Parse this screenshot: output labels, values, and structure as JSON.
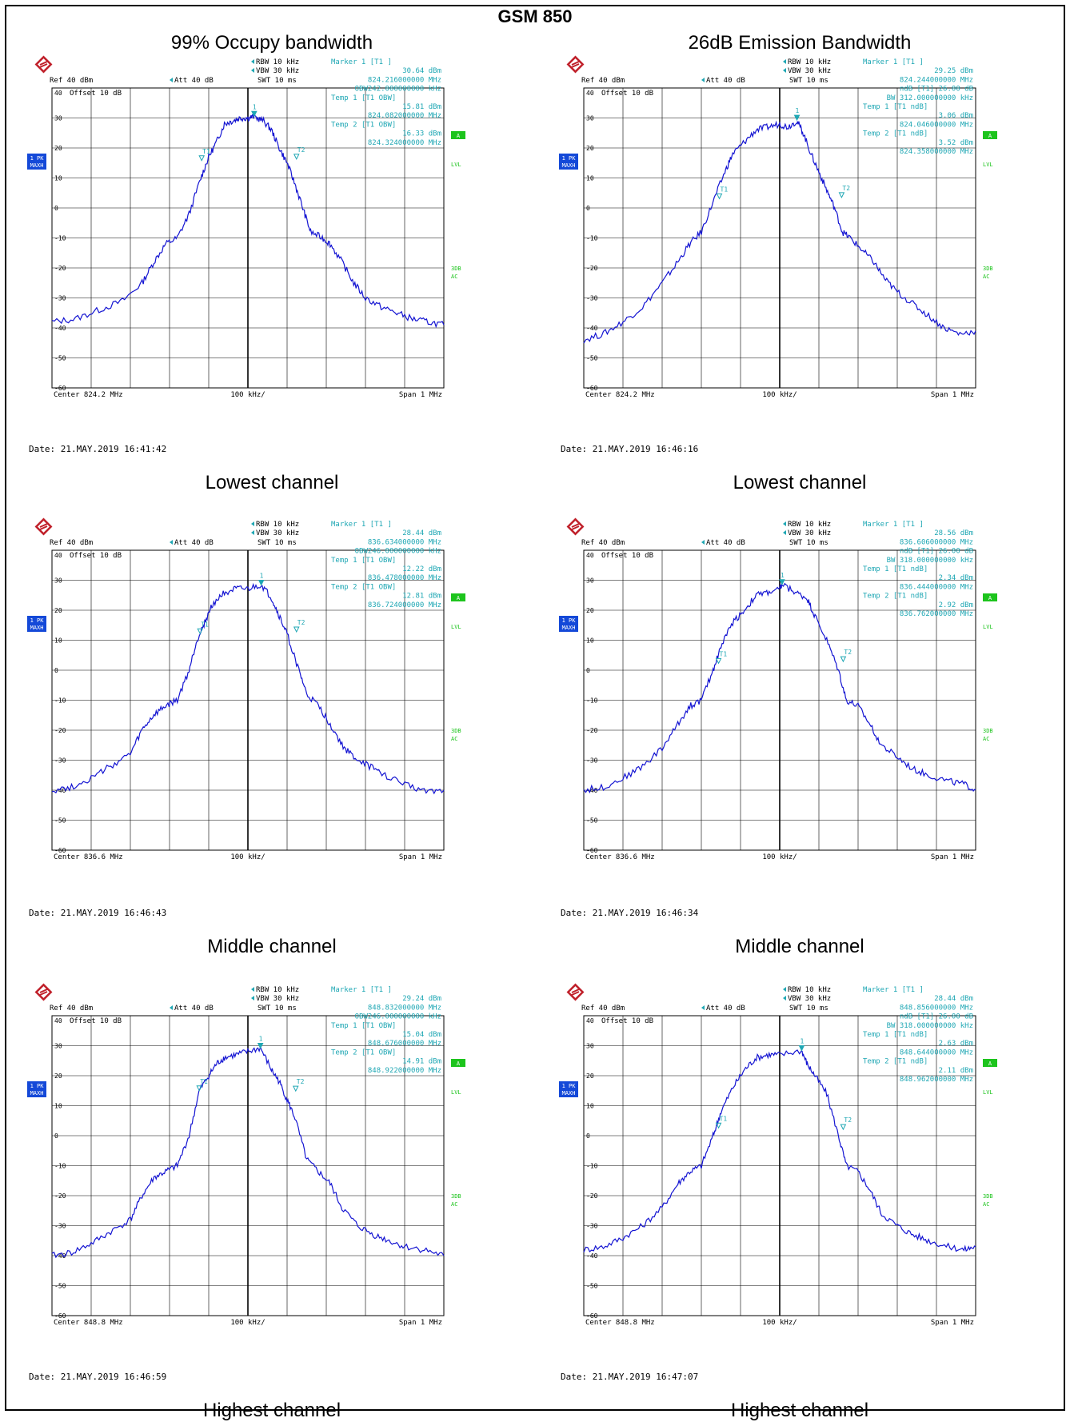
{
  "page": {
    "title": "GSM 850",
    "column_headers": [
      "99% Occupy bandwidth",
      "26dB Emission Bandwidth"
    ]
  },
  "colors": {
    "trace": "#1414d2",
    "readout": "#1fa7b4",
    "side_badge": "#1449d8",
    "status_badge": "#1dc41d",
    "grid": "#000000"
  },
  "chart_data": [
    {
      "type": "line",
      "instrument": {
        "rbw": "RBW 10 kHz",
        "vbw": "VBW 30 kHz",
        "swt": "SWT 10 ms",
        "ref": "Ref  40 dBm",
        "att": "Att  40 dB",
        "offset": "Offset  10 dB",
        "center": "Center 824.2 MHz",
        "div": "100 kHz/",
        "span": "Span 1 MHz",
        "trace_badge": [
          "1 PK",
          "MAXH"
        ],
        "status_badges": [
          "A",
          "LVL"
        ],
        "right_labels": [
          "3DB",
          "AC"
        ]
      },
      "marker_readout": [
        "Marker 1 [T1 ]",
        "30.64 dBm",
        "824.216000000 MHz",
        "OBW242.000000000 kHz",
        "Temp 1 [T1 OBW]",
        "15.81 dBm",
        "824.082000000 MHz",
        "Temp 2 [T1 OBW]",
        "16.33 dBm",
        "824.324000000 MHz"
      ],
      "date": "Date: 21.MAY.2019  16:41:42",
      "caption": "Lowest channel",
      "ylim": [
        -60,
        40
      ],
      "xlim": [
        -500,
        500
      ],
      "y_ticks": [
        40,
        30,
        20,
        10,
        0,
        -10,
        -20,
        -30,
        -40,
        -50,
        -60
      ],
      "trace_points": [
        [
          -500,
          -38
        ],
        [
          -440,
          -37
        ],
        [
          -380,
          -34
        ],
        [
          -320,
          -31
        ],
        [
          -270,
          -25
        ],
        [
          -240,
          -18
        ],
        [
          -210,
          -12
        ],
        [
          -180,
          -10
        ],
        [
          -150,
          -2
        ],
        [
          -120,
          10
        ],
        [
          -100,
          17
        ],
        [
          -80,
          22
        ],
        [
          -60,
          28
        ],
        [
          -40,
          29
        ],
        [
          -20,
          30
        ],
        [
          0,
          30
        ],
        [
          16,
          30.5
        ],
        [
          40,
          29
        ],
        [
          60,
          26
        ],
        [
          80,
          20
        ],
        [
          100,
          15
        ],
        [
          120,
          8
        ],
        [
          140,
          0
        ],
        [
          160,
          -8
        ],
        [
          190,
          -10
        ],
        [
          210,
          -12
        ],
        [
          240,
          -18
        ],
        [
          270,
          -25
        ],
        [
          300,
          -30
        ],
        [
          340,
          -33
        ],
        [
          380,
          -35
        ],
        [
          420,
          -37
        ],
        [
          460,
          -38
        ],
        [
          500,
          -39
        ]
      ],
      "markers": [
        {
          "label": "1",
          "x": 16,
          "y": 30.6
        },
        {
          "label": "T1",
          "x": -118,
          "y": 15.8
        },
        {
          "label": "T2",
          "x": 124,
          "y": 16.3
        }
      ]
    },
    {
      "type": "line",
      "instrument": {
        "rbw": "RBW 10 kHz",
        "vbw": "VBW 30 kHz",
        "swt": "SWT 10 ms",
        "ref": "Ref  40 dBm",
        "att": "Att  40 dB",
        "offset": "Offset  10 dB",
        "center": "Center 824.2 MHz",
        "div": "100 kHz/",
        "span": "Span 1 MHz",
        "trace_badge": [
          "1 PK",
          "MAXH"
        ],
        "status_badges": [
          "A",
          "LVL"
        ],
        "right_labels": [
          "3DB",
          "AC"
        ]
      },
      "marker_readout": [
        "Marker 1 [T1 ]",
        "29.25 dBm",
        "824.244000000 MHz",
        "ndB [T1]  26.00 dB",
        "BW 312.000000000 kHz",
        "Temp 1 [T1 ndB]",
        "3.06 dBm",
        "824.046000000 MHz",
        "Temp 2 [T1 ndB]",
        "3.52 dBm",
        "824.358000000 MHz"
      ],
      "date": "Date: 21.MAY.2019  16:46:16",
      "caption": "Lowest channel",
      "ylim": [
        -60,
        40
      ],
      "xlim": [
        -500,
        500
      ],
      "y_ticks": [
        40,
        30,
        20,
        10,
        0,
        -10,
        -20,
        -30,
        -40,
        -50,
        -60
      ],
      "trace_points": [
        [
          -500,
          -44
        ],
        [
          -450,
          -42
        ],
        [
          -400,
          -38
        ],
        [
          -350,
          -33
        ],
        [
          -300,
          -25
        ],
        [
          -260,
          -18
        ],
        [
          -230,
          -12
        ],
        [
          -200,
          -8
        ],
        [
          -170,
          2
        ],
        [
          -140,
          12
        ],
        [
          -120,
          18
        ],
        [
          -90,
          22
        ],
        [
          -60,
          26
        ],
        [
          -30,
          27
        ],
        [
          0,
          28
        ],
        [
          20,
          27
        ],
        [
          44,
          29
        ],
        [
          60,
          25
        ],
        [
          80,
          18
        ],
        [
          100,
          12
        ],
        [
          120,
          6
        ],
        [
          140,
          0
        ],
        [
          160,
          -8
        ],
        [
          180,
          -10
        ],
        [
          210,
          -14
        ],
        [
          240,
          -18
        ],
        [
          270,
          -24
        ],
        [
          300,
          -28
        ],
        [
          340,
          -32
        ],
        [
          380,
          -36
        ],
        [
          420,
          -40
        ],
        [
          460,
          -42
        ],
        [
          500,
          -41
        ]
      ],
      "markers": [
        {
          "label": "1",
          "x": 44,
          "y": 29.3
        },
        {
          "label": "T1",
          "x": -154,
          "y": 3.1
        },
        {
          "label": "T2",
          "x": 158,
          "y": 3.5
        }
      ]
    },
    {
      "type": "line",
      "instrument": {
        "rbw": "RBW 10 kHz",
        "vbw": "VBW 30 kHz",
        "swt": "SWT 10 ms",
        "ref": "Ref  40 dBm",
        "att": "Att  40 dB",
        "offset": "Offset  10 dB",
        "center": "Center 836.6 MHz",
        "div": "100 kHz/",
        "span": "Span 1 MHz",
        "trace_badge": [
          "1 PK",
          "MAXH"
        ],
        "status_badges": [
          "A",
          "LVL"
        ],
        "right_labels": [
          "3DB",
          "AC"
        ]
      },
      "marker_readout": [
        "Marker 1 [T1 ]",
        "28.44 dBm",
        "836.634000000 MHz",
        "OBW246.000000000 kHz",
        "Temp 1 [T1 OBW]",
        "12.22 dBm",
        "836.478000000 MHz",
        "Temp 2 [T1 OBW]",
        "12.81 dBm",
        "836.724000000 MHz"
      ],
      "date": "Date: 21.MAY.2019  16:46:43",
      "caption": "Middle channel",
      "ylim": [
        -60,
        40
      ],
      "xlim": [
        -500,
        500
      ],
      "y_ticks": [
        40,
        30,
        20,
        10,
        0,
        -10,
        -20,
        -30,
        -40,
        -50,
        -60
      ],
      "trace_points": [
        [
          -500,
          -40
        ],
        [
          -450,
          -39
        ],
        [
          -400,
          -36
        ],
        [
          -350,
          -32
        ],
        [
          -300,
          -28
        ],
        [
          -270,
          -20
        ],
        [
          -240,
          -15
        ],
        [
          -210,
          -12
        ],
        [
          -180,
          -10
        ],
        [
          -150,
          0
        ],
        [
          -130,
          10
        ],
        [
          -110,
          16
        ],
        [
          -90,
          22
        ],
        [
          -60,
          26
        ],
        [
          -30,
          27
        ],
        [
          0,
          27
        ],
        [
          34,
          28.4
        ],
        [
          60,
          24
        ],
        [
          80,
          18
        ],
        [
          100,
          12
        ],
        [
          130,
          0
        ],
        [
          150,
          -8
        ],
        [
          180,
          -12
        ],
        [
          210,
          -18
        ],
        [
          240,
          -25
        ],
        [
          270,
          -29
        ],
        [
          310,
          -32
        ],
        [
          350,
          -35
        ],
        [
          400,
          -38
        ],
        [
          450,
          -40
        ],
        [
          500,
          -40
        ]
      ],
      "markers": [
        {
          "label": "1",
          "x": 34,
          "y": 28.4
        },
        {
          "label": "T1",
          "x": -122,
          "y": 12.2
        },
        {
          "label": "T2",
          "x": 124,
          "y": 12.8
        }
      ]
    },
    {
      "type": "line",
      "instrument": {
        "rbw": "RBW 10 kHz",
        "vbw": "VBW 30 kHz",
        "swt": "SWT 10 ms",
        "ref": "Ref  40 dBm",
        "att": "Att  40 dB",
        "offset": "Offset  10 dB",
        "center": "Center 836.6 MHz",
        "div": "100 kHz/",
        "span": "Span 1 MHz",
        "trace_badge": [
          "1 PK",
          "MAXH"
        ],
        "status_badges": [
          "A",
          "LVL"
        ],
        "right_labels": [
          "3DB",
          "AC"
        ]
      },
      "marker_readout": [
        "Marker 1 [T1 ]",
        "28.56 dBm",
        "836.606000000 MHz",
        "ndB [T1]  26.00 dB",
        "BW 318.000000000 kHz",
        "Temp 1 [T1 ndB]",
        "2.34 dBm",
        "836.444000000 MHz",
        "Temp 2 [T1 ndB]",
        "2.92 dBm",
        "836.762000000 MHz"
      ],
      "date": "Date: 21.MAY.2019  16:46:34",
      "caption": "Middle channel",
      "ylim": [
        -60,
        40
      ],
      "xlim": [
        -500,
        500
      ],
      "y_ticks": [
        40,
        30,
        20,
        10,
        0,
        -10,
        -20,
        -30,
        -40,
        -50,
        -60
      ],
      "trace_points": [
        [
          -500,
          -40
        ],
        [
          -450,
          -39
        ],
        [
          -400,
          -36
        ],
        [
          -350,
          -32
        ],
        [
          -300,
          -26
        ],
        [
          -260,
          -18
        ],
        [
          -230,
          -12
        ],
        [
          -200,
          -10
        ],
        [
          -170,
          0
        ],
        [
          -150,
          8
        ],
        [
          -120,
          16
        ],
        [
          -90,
          20
        ],
        [
          -60,
          25
        ],
        [
          -30,
          26
        ],
        [
          0,
          27
        ],
        [
          6,
          28.6
        ],
        [
          40,
          26
        ],
        [
          70,
          24
        ],
        [
          90,
          18
        ],
        [
          120,
          10
        ],
        [
          150,
          0
        ],
        [
          170,
          -10
        ],
        [
          200,
          -12
        ],
        [
          230,
          -18
        ],
        [
          260,
          -25
        ],
        [
          300,
          -29
        ],
        [
          340,
          -33
        ],
        [
          380,
          -35
        ],
        [
          430,
          -37
        ],
        [
          470,
          -38
        ],
        [
          500,
          -40
        ]
      ],
      "markers": [
        {
          "label": "1",
          "x": 6,
          "y": 28.6
        },
        {
          "label": "T1",
          "x": -156,
          "y": 2.3
        },
        {
          "label": "T2",
          "x": 162,
          "y": 2.9
        }
      ]
    },
    {
      "type": "line",
      "instrument": {
        "rbw": "RBW 10 kHz",
        "vbw": "VBW 30 kHz",
        "swt": "SWT 10 ms",
        "ref": "Ref  40 dBm",
        "att": "Att  40 dB",
        "offset": "Offset  10 dB",
        "center": "Center 848.8 MHz",
        "div": "100 kHz/",
        "span": "Span 1 MHz",
        "trace_badge": [
          "1 PK",
          "MAXH"
        ],
        "status_badges": [
          "A",
          "LVL"
        ],
        "right_labels": [
          "3DB",
          "AC"
        ]
      },
      "marker_readout": [
        "Marker 1 [T1 ]",
        "29.24 dBm",
        "848.832000000 MHz",
        "OBW246.000000000 kHz",
        "Temp 1 [T1 OBW]",
        "15.04 dBm",
        "848.676000000 MHz",
        "Temp 2 [T1 OBW]",
        "14.91 dBm",
        "848.922000000 MHz"
      ],
      "date": "Date: 21.MAY.2019  16:46:59",
      "caption": "Highest channel",
      "ylim": [
        -60,
        40
      ],
      "xlim": [
        -500,
        500
      ],
      "y_ticks": [
        40,
        30,
        20,
        10,
        0,
        -10,
        -20,
        -30,
        -40,
        -50,
        -60
      ],
      "trace_points": [
        [
          -500,
          -40
        ],
        [
          -450,
          -39
        ],
        [
          -400,
          -36
        ],
        [
          -350,
          -32
        ],
        [
          -300,
          -28
        ],
        [
          -270,
          -20
        ],
        [
          -240,
          -14
        ],
        [
          -210,
          -12
        ],
        [
          -180,
          -10
        ],
        [
          -150,
          0
        ],
        [
          -124,
          15
        ],
        [
          -100,
          20
        ],
        [
          -80,
          24
        ],
        [
          -60,
          26
        ],
        [
          -30,
          27
        ],
        [
          0,
          28
        ],
        [
          32,
          29.2
        ],
        [
          60,
          22
        ],
        [
          80,
          18
        ],
        [
          100,
          12
        ],
        [
          120,
          6
        ],
        [
          150,
          -8
        ],
        [
          180,
          -12
        ],
        [
          210,
          -16
        ],
        [
          240,
          -24
        ],
        [
          280,
          -30
        ],
        [
          320,
          -33
        ],
        [
          360,
          -35
        ],
        [
          400,
          -37
        ],
        [
          450,
          -38
        ],
        [
          500,
          -40
        ]
      ],
      "markers": [
        {
          "label": "1",
          "x": 32,
          "y": 29.2
        },
        {
          "label": "T1",
          "x": -124,
          "y": 15.0
        },
        {
          "label": "T2",
          "x": 122,
          "y": 14.9
        }
      ]
    },
    {
      "type": "line",
      "instrument": {
        "rbw": "RBW 10 kHz",
        "vbw": "VBW 30 kHz",
        "swt": "SWT 10 ms",
        "ref": "Ref  40 dBm",
        "att": "Att  40 dB",
        "offset": "Offset  10 dB",
        "center": "Center 848.8 MHz",
        "div": "100 kHz/",
        "span": "Span 1 MHz",
        "trace_badge": [
          "1 PK",
          "MAXH"
        ],
        "status_badges": [
          "A",
          "LVL"
        ],
        "right_labels": [
          "3DB",
          "AC"
        ]
      },
      "marker_readout": [
        "Marker 1 [T1 ]",
        "28.44 dBm",
        "848.856000000 MHz",
        "ndB [T1]  26.00 dB",
        "BW 318.000000000 kHz",
        "Temp 1 [T1 ndB]",
        "2.63 dBm",
        "848.644000000 MHz",
        "Temp 2 [T1 ndB]",
        "2.11 dBm",
        "848.962000000 MHz"
      ],
      "date": "Date: 21.MAY.2019  16:47:07",
      "caption": "Highest channel",
      "ylim": [
        -60,
        40
      ],
      "xlim": [
        -500,
        500
      ],
      "y_ticks": [
        40,
        30,
        20,
        10,
        0,
        -10,
        -20,
        -30,
        -40,
        -50,
        -60
      ],
      "trace_points": [
        [
          -500,
          -38
        ],
        [
          -450,
          -37
        ],
        [
          -400,
          -34
        ],
        [
          -350,
          -30
        ],
        [
          -300,
          -24
        ],
        [
          -260,
          -16
        ],
        [
          -230,
          -12
        ],
        [
          -200,
          -10
        ],
        [
          -170,
          0
        ],
        [
          -150,
          8
        ],
        [
          -120,
          16
        ],
        [
          -90,
          22
        ],
        [
          -60,
          26
        ],
        [
          -30,
          27
        ],
        [
          0,
          27
        ],
        [
          56,
          28.4
        ],
        [
          70,
          24
        ],
        [
          90,
          20
        ],
        [
          120,
          14
        ],
        [
          150,
          0
        ],
        [
          170,
          -10
        ],
        [
          200,
          -12
        ],
        [
          230,
          -18
        ],
        [
          260,
          -26
        ],
        [
          300,
          -30
        ],
        [
          340,
          -33
        ],
        [
          380,
          -35
        ],
        [
          430,
          -37
        ],
        [
          470,
          -38
        ],
        [
          500,
          -37
        ]
      ],
      "markers": [
        {
          "label": "1",
          "x": 56,
          "y": 28.4
        },
        {
          "label": "T1",
          "x": -156,
          "y": 2.6
        },
        {
          "label": "T2",
          "x": 162,
          "y": 2.1
        }
      ]
    }
  ]
}
